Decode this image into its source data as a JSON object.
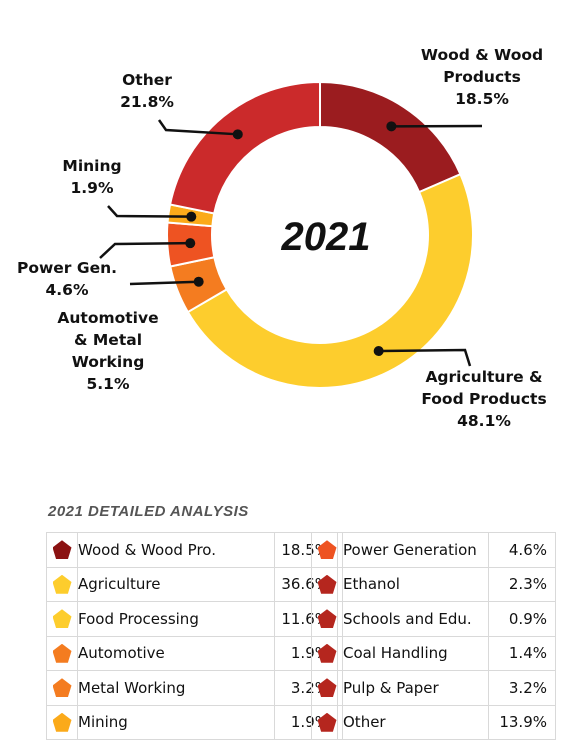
{
  "chart_data": {
    "type": "pie",
    "donut": true,
    "center_label": "2021",
    "slices": [
      {
        "label_lines": [
          "Wood & Wood",
          "Products"
        ],
        "value_label": "18.5%",
        "value": 18.5,
        "color": "#9B1C1F"
      },
      {
        "label_lines": [
          "Agriculture &",
          "Food Products"
        ],
        "value_label": "48.1%",
        "value": 48.1,
        "color": "#FDCD2D"
      },
      {
        "label_lines": [
          "Automotive",
          "& Metal",
          "Working"
        ],
        "value_label": "5.1%",
        "value": 5.1,
        "color": "#F47C20"
      },
      {
        "label_lines": [
          "Power Gen."
        ],
        "value_label": "4.6%",
        "value": 4.6,
        "color": "#EE5322"
      },
      {
        "label_lines": [
          "Mining"
        ],
        "value_label": "1.9%",
        "value": 1.9,
        "color": "#FBAA1A"
      },
      {
        "label_lines": [
          "Other"
        ],
        "value_label": "21.8%",
        "value": 21.8,
        "color": "#CB2A2B"
      }
    ]
  },
  "analysis": {
    "title": "2021 DETAILED ANALYSIS",
    "left": [
      {
        "label": "Wood & Wood Pro.",
        "value": "18.5%",
        "color": "#8B1212"
      },
      {
        "label": "Agriculture",
        "value": "36.6%",
        "color": "#FDCD2D"
      },
      {
        "label": "Food Processing",
        "value": "11.6%",
        "color": "#FDCD2D"
      },
      {
        "label": "Automotive",
        "value": "1.9%",
        "color": "#F47C20"
      },
      {
        "label": "Metal Working",
        "value": "3.2%",
        "color": "#F47C20"
      },
      {
        "label": "Mining",
        "value": "1.9%",
        "color": "#FBAA1A"
      }
    ],
    "right": [
      {
        "label": "Power Generation",
        "value": "4.6%",
        "color": "#EE5322"
      },
      {
        "label": "Ethanol",
        "value": "2.3%",
        "color": "#B5261E"
      },
      {
        "label": "Schools and Edu.",
        "value": "0.9%",
        "color": "#B5261E"
      },
      {
        "label": "Coal Handling",
        "value": "1.4%",
        "color": "#B5261E"
      },
      {
        "label": "Pulp & Paper",
        "value": "3.2%",
        "color": "#B5261E"
      },
      {
        "label": "Other",
        "value": "13.9%",
        "color": "#B5261E"
      }
    ]
  }
}
